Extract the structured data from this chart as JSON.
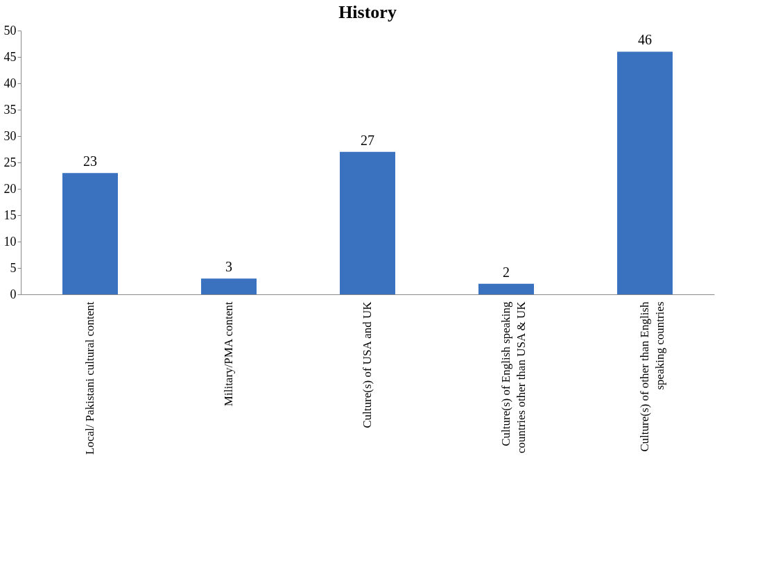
{
  "chart_data": {
    "type": "bar",
    "title": "History",
    "categories": [
      "Local/ Pakistani cultural content",
      "Military/PMA content",
      "Culture(s) of USA and UK",
      "Culture(s) of English speaking countries other than USA & UK",
      "Culture(s) of other than English speaking countries"
    ],
    "values": [
      23,
      3,
      27,
      2,
      46
    ],
    "color": "#3a72c0",
    "ylim": [
      0,
      50
    ],
    "yticks": [
      0,
      5,
      10,
      15,
      20,
      25,
      30,
      35,
      40,
      45,
      50
    ],
    "data_labels": true,
    "grid": false
  }
}
